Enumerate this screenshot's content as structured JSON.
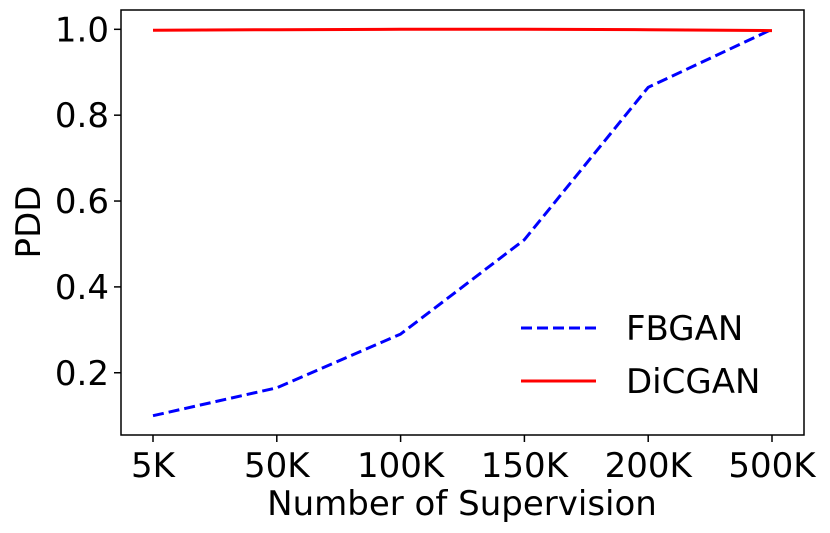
{
  "chart_data": {
    "type": "line",
    "categories": [
      "5K",
      "50K",
      "100K",
      "150K",
      "200K",
      "500K"
    ],
    "series": [
      {
        "name": "FBGAN",
        "values": [
          0.1,
          0.165,
          0.29,
          0.51,
          0.865,
          1.0
        ],
        "color": "#0000ff",
        "style": "dashed"
      },
      {
        "name": "DiCGAN",
        "values": [
          0.998,
          0.999,
          1.0,
          1.0,
          0.999,
          0.997
        ],
        "color": "#ff0000",
        "style": "solid"
      }
    ],
    "xlabel": "Number of Supervision",
    "ylabel": "PDD",
    "ylim": [
      0.055,
      1.045
    ],
    "yticks": [
      0.2,
      0.4,
      0.6,
      0.8,
      1.0
    ],
    "ytick_labels": [
      "0.2",
      "0.4",
      "0.6",
      "0.8",
      "1.0"
    ],
    "grid": false,
    "legend": "lower-right"
  }
}
